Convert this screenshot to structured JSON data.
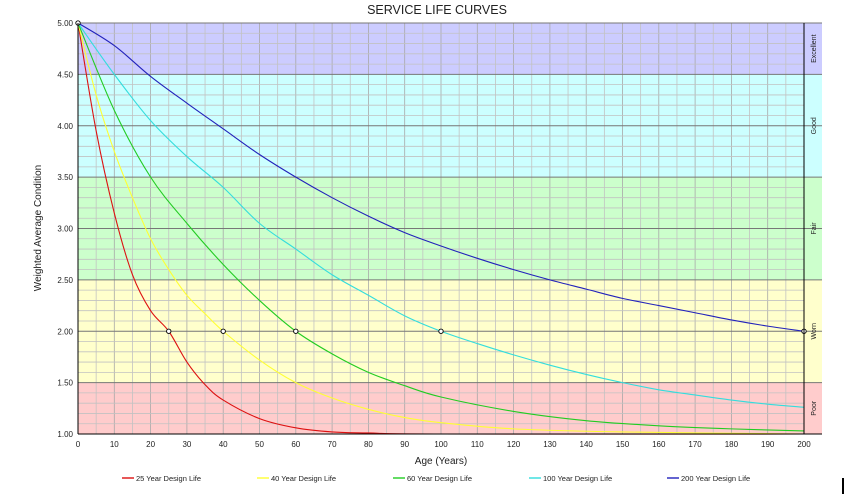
{
  "chart_data": {
    "type": "line",
    "title": "SERVICE LIFE CURVES",
    "xlabel": "Age (Years)",
    "ylabel": "Weighted Average Condition",
    "xlim": [
      0,
      200
    ],
    "ylim": [
      1.0,
      5.0
    ],
    "x_ticks": [
      "0",
      "10",
      "20",
      "30",
      "40",
      "50",
      "60",
      "70",
      "80",
      "90",
      "100",
      "110",
      "120",
      "130",
      "140",
      "150",
      "160",
      "170",
      "180",
      "190",
      "200"
    ],
    "y_ticks": [
      "1.00",
      "1.50",
      "2.00",
      "2.50",
      "3.00",
      "3.50",
      "4.00",
      "4.50",
      "5.00"
    ],
    "grid": true,
    "legend_position": "bottom",
    "condition_bands": [
      {
        "label": "Excellent",
        "from": 4.5,
        "to": 5.0,
        "color": "#ccccff"
      },
      {
        "label": "Good",
        "from": 3.5,
        "to": 4.5,
        "color": "#ccffff"
      },
      {
        "label": "Fair",
        "from": 2.5,
        "to": 3.5,
        "color": "#ccffcc"
      },
      {
        "label": "Worn",
        "from": 1.5,
        "to": 2.5,
        "color": "#ffffcc"
      },
      {
        "label": "Poor",
        "from": 1.0,
        "to": 1.5,
        "color": "#ffcccc"
      }
    ],
    "series": [
      {
        "name": "25 Year Design Life",
        "color": "#dd1111",
        "x": [
          0,
          5,
          10,
          15,
          20,
          25,
          30,
          35,
          40,
          50,
          60,
          70,
          80,
          100,
          200
        ],
        "y": [
          5.0,
          3.95,
          3.15,
          2.55,
          2.2,
          2.0,
          1.7,
          1.48,
          1.33,
          1.15,
          1.06,
          1.02,
          1.01,
          1.0,
          1.0
        ],
        "markers": [
          [
            25,
            2.0
          ]
        ]
      },
      {
        "name": "40 Year Design Life",
        "color": "#ffff33",
        "x": [
          0,
          5,
          10,
          15,
          20,
          25,
          30,
          35,
          40,
          50,
          60,
          70,
          80,
          90,
          100,
          120,
          150,
          200
        ],
        "y": [
          5.0,
          4.3,
          3.75,
          3.3,
          2.9,
          2.6,
          2.35,
          2.17,
          2.0,
          1.72,
          1.5,
          1.35,
          1.24,
          1.16,
          1.11,
          1.05,
          1.02,
          1.0
        ],
        "markers": [
          [
            40,
            2.0
          ]
        ]
      },
      {
        "name": "60 Year Design Life",
        "color": "#22cc22",
        "x": [
          0,
          10,
          20,
          30,
          40,
          50,
          60,
          70,
          80,
          90,
          100,
          120,
          140,
          160,
          180,
          200
        ],
        "y": [
          5.0,
          4.15,
          3.5,
          3.05,
          2.65,
          2.3,
          2.0,
          1.78,
          1.6,
          1.47,
          1.36,
          1.22,
          1.13,
          1.08,
          1.05,
          1.03
        ],
        "markers": [
          [
            60,
            2.0
          ]
        ]
      },
      {
        "name": "100 Year Design Life",
        "color": "#33dddd",
        "x": [
          0,
          10,
          20,
          30,
          40,
          50,
          60,
          70,
          80,
          90,
          100,
          110,
          120,
          130,
          140,
          150,
          160,
          170,
          180,
          190,
          200
        ],
        "y": [
          5.0,
          4.5,
          4.05,
          3.7,
          3.4,
          3.05,
          2.8,
          2.55,
          2.35,
          2.15,
          2.0,
          1.88,
          1.77,
          1.67,
          1.58,
          1.5,
          1.43,
          1.38,
          1.33,
          1.29,
          1.26
        ],
        "markers": [
          [
            100,
            2.0
          ]
        ]
      },
      {
        "name": "200 Year Design Life",
        "color": "#2222bb",
        "x": [
          0,
          10,
          20,
          30,
          40,
          50,
          60,
          70,
          80,
          90,
          100,
          110,
          120,
          130,
          140,
          150,
          160,
          170,
          180,
          190,
          200
        ],
        "y": [
          5.0,
          4.78,
          4.48,
          4.22,
          3.97,
          3.72,
          3.5,
          3.3,
          3.12,
          2.96,
          2.83,
          2.71,
          2.6,
          2.5,
          2.41,
          2.32,
          2.25,
          2.18,
          2.11,
          2.05,
          2.0
        ],
        "markers": [
          [
            0,
            5.0
          ],
          [
            200,
            2.0
          ]
        ]
      }
    ]
  }
}
